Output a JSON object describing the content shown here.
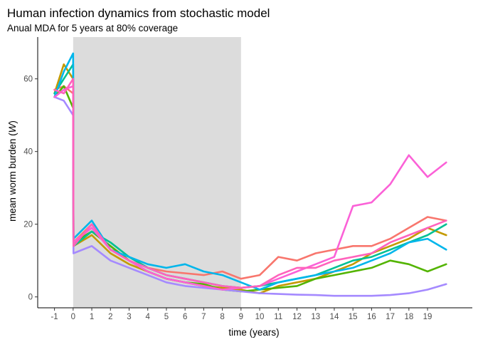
{
  "chart_data": {
    "type": "line",
    "title": "Human infection dynamics from stochastic model",
    "subtitle": "Anual MDA for 5 years at 80% coverage",
    "xlabel": "time (years)",
    "ylabel_prefix": "mean worm burden (",
    "ylabel_symbol": "W",
    "ylabel_suffix": ")",
    "xlim": [
      -1.9,
      21.4
    ],
    "ylim": [
      -3,
      71.5
    ],
    "x_ticks": [
      -1,
      0,
      1,
      2,
      3,
      4,
      5,
      6,
      7,
      8,
      9,
      10,
      11,
      12,
      13,
      14,
      15,
      16,
      17,
      18,
      19
    ],
    "y_ticks": [
      0,
      20,
      40,
      60
    ],
    "mda_window": [
      0,
      9
    ],
    "mda_shade_color": "#dcdcdc",
    "grid": false,
    "legend": "none",
    "series": [
      {
        "color": "#f8766d",
        "x": [
          -1,
          -0.5,
          0,
          0.02,
          1,
          2,
          3,
          4,
          5,
          6,
          7,
          8,
          9,
          10,
          11,
          12,
          13,
          14,
          15,
          16,
          17,
          18,
          19,
          20
        ],
        "y": [
          57,
          58,
          56,
          15,
          20,
          13,
          11,
          8,
          7,
          6.5,
          6,
          7,
          5,
          6,
          11,
          10,
          12,
          13,
          14,
          14,
          16,
          19,
          22,
          21
        ]
      },
      {
        "color": "#c49a00",
        "x": [
          -1,
          -0.5,
          0,
          0.02,
          1,
          2,
          3,
          4,
          5,
          6,
          7,
          8,
          9,
          10,
          11,
          12,
          13,
          14,
          15,
          16,
          17,
          18,
          19,
          20
        ],
        "y": [
          56,
          64,
          60,
          14,
          17,
          12,
          9,
          7,
          5,
          4,
          3,
          2.5,
          2,
          1,
          3,
          4,
          5,
          7,
          9,
          12,
          14,
          16,
          19,
          17
        ]
      },
      {
        "color": "#53b400",
        "x": [
          -1,
          -0.5,
          0,
          0.02,
          1,
          2,
          3,
          4,
          5,
          6,
          7,
          8,
          9,
          10,
          11,
          12,
          13,
          14,
          15,
          16,
          17,
          18,
          19,
          20
        ],
        "y": [
          55,
          58,
          52,
          15,
          18,
          14,
          10,
          7,
          5,
          4,
          3.5,
          2,
          1.5,
          2,
          2.5,
          3,
          5,
          6,
          7,
          8,
          10,
          9,
          7,
          9
        ]
      },
      {
        "color": "#00c094",
        "x": [
          -1,
          -0.5,
          0,
          0.02,
          1,
          2,
          3,
          4,
          5,
          6,
          7,
          8,
          9,
          10,
          11,
          12,
          13,
          14,
          15,
          16,
          17,
          18,
          19,
          20
        ],
        "y": [
          56,
          60,
          64,
          14,
          18,
          15,
          11,
          8,
          6,
          5,
          4,
          3,
          2.5,
          3,
          4,
          5,
          6,
          8,
          10,
          11,
          13,
          15,
          17,
          20
        ]
      },
      {
        "color": "#00b6eb",
        "x": [
          -1,
          -0.5,
          0,
          0.02,
          1,
          2,
          3,
          4,
          5,
          6,
          7,
          8,
          9,
          10,
          11,
          12,
          13,
          14,
          15,
          16,
          17,
          18,
          19,
          20
        ],
        "y": [
          55,
          62,
          67,
          16,
          21,
          13,
          11,
          9,
          8,
          9,
          7,
          6,
          4,
          2,
          4,
          5,
          6,
          7,
          8,
          10,
          12,
          15,
          16,
          13
        ]
      },
      {
        "color": "#a58aff",
        "x": [
          -1,
          -0.5,
          0,
          0.02,
          1,
          2,
          3,
          4,
          5,
          6,
          7,
          8,
          9,
          10,
          11,
          12,
          13,
          14,
          15,
          16,
          17,
          18,
          19,
          20
        ],
        "y": [
          55,
          54,
          50,
          12,
          14,
          10,
          8,
          6,
          4,
          3,
          2.5,
          2,
          1.5,
          1,
          0.8,
          0.6,
          0.5,
          0.3,
          0.3,
          0.3,
          0.5,
          1,
          2,
          3.5
        ]
      },
      {
        "color": "#fb61d7",
        "x": [
          -1,
          -0.5,
          0,
          0.02,
          1,
          2,
          3,
          4,
          5,
          6,
          7,
          8,
          9,
          10,
          11,
          12,
          13,
          14,
          15,
          16,
          17,
          18,
          19,
          20
        ],
        "y": [
          55,
          57,
          58,
          15,
          19,
          13,
          10,
          7,
          5,
          4,
          3,
          2,
          2.5,
          3,
          5,
          7,
          9,
          11,
          25,
          26,
          31,
          39,
          33,
          37
        ]
      },
      {
        "color": "#ff62bc",
        "x": [
          -1,
          -0.5,
          0,
          0.02,
          1,
          2,
          3,
          4,
          5,
          6,
          7,
          8,
          9,
          10,
          11,
          12,
          13,
          14,
          15,
          16,
          17,
          18,
          19,
          20
        ],
        "y": [
          57,
          56,
          60,
          14,
          20,
          13,
          10,
          8,
          6,
          5,
          4,
          3,
          2.5,
          3,
          6,
          8,
          8,
          10,
          11,
          12,
          15,
          17,
          19,
          21
        ]
      }
    ]
  }
}
